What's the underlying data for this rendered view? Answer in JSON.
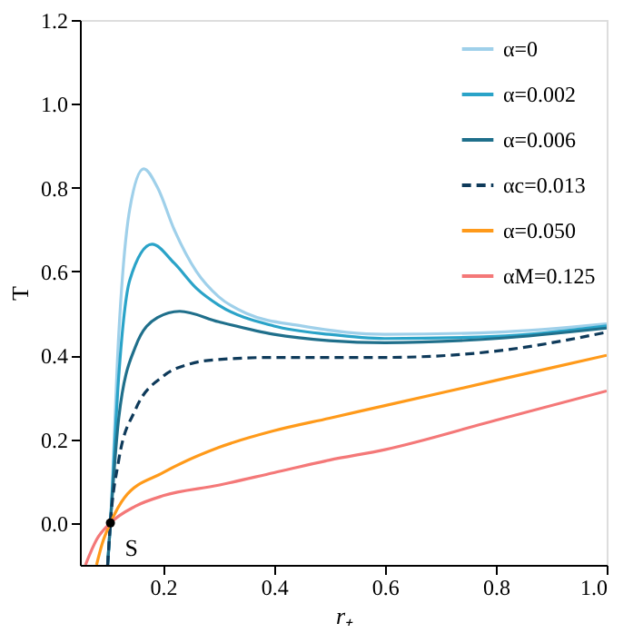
{
  "chart_data": {
    "type": "line",
    "xlabel": "r₊",
    "ylabel": "T",
    "xlim": [
      0.05,
      1.0
    ],
    "ylim": [
      -0.1,
      1.2
    ],
    "xticks": [
      0.2,
      0.4,
      0.6,
      0.8,
      {
        "value": 1.0,
        "label": "1.0"
      }
    ],
    "yticks": [
      {
        "value": 0.0,
        "label": "0.0"
      },
      0.2,
      0.4,
      0.6,
      0.8,
      {
        "value": 1.0,
        "label": "1.0"
      },
      1.2
    ],
    "legend": "top right",
    "grid": false,
    "series": [
      {
        "name": "α=0",
        "color": "#9fd0ea",
        "line_style": "solid",
        "x": [
          0.1,
          0.105,
          0.12,
          0.14,
          0.165,
          0.19,
          0.22,
          0.26,
          0.3,
          0.35,
          0.45,
          0.6,
          0.8,
          1.0
        ],
        "values": [
          -0.1,
          0.0,
          0.45,
          0.75,
          0.845,
          0.8,
          0.7,
          0.6,
          0.54,
          0.5,
          0.47,
          0.45,
          0.455,
          0.475
        ]
      },
      {
        "name": "α=0.002",
        "color": "#2aa3c8",
        "line_style": "solid",
        "x": [
          0.1,
          0.105,
          0.12,
          0.14,
          0.18,
          0.22,
          0.26,
          0.3,
          0.4,
          0.5,
          0.6,
          0.8,
          1.0
        ],
        "values": [
          -0.1,
          0.0,
          0.35,
          0.58,
          0.665,
          0.62,
          0.56,
          0.52,
          0.47,
          0.45,
          0.44,
          0.445,
          0.47
        ]
      },
      {
        "name": "α=0.006",
        "color": "#1f6f8b",
        "line_style": "solid",
        "x": [
          0.1,
          0.105,
          0.12,
          0.15,
          0.19,
          0.23,
          0.3,
          0.4,
          0.5,
          0.6,
          0.8,
          1.0
        ],
        "values": [
          -0.1,
          0.0,
          0.25,
          0.42,
          0.49,
          0.505,
          0.48,
          0.45,
          0.435,
          0.43,
          0.44,
          0.465
        ]
      },
      {
        "name": "αc=0.013",
        "color": "#0e3a5a",
        "line_style": "dashed",
        "x": [
          0.1,
          0.105,
          0.12,
          0.15,
          0.2,
          0.25,
          0.3,
          0.4,
          0.6,
          0.8,
          1.0
        ],
        "values": [
          -0.1,
          0.0,
          0.15,
          0.27,
          0.35,
          0.38,
          0.39,
          0.395,
          0.395,
          0.41,
          0.455
        ]
      },
      {
        "name": "α=0.050",
        "color": "#ff9a1a",
        "line_style": "solid",
        "x": [
          0.08,
          0.09,
          0.105,
          0.13,
          0.2,
          0.3,
          0.4,
          0.5,
          0.6,
          0.8,
          1.0
        ],
        "values": [
          -0.1,
          -0.05,
          0.0,
          0.06,
          0.12,
          0.18,
          0.22,
          0.25,
          0.28,
          0.34,
          0.4
        ]
      },
      {
        "name": "αM=0.125",
        "color": "#f47878",
        "line_style": "solid",
        "x": [
          0.06,
          0.08,
          0.105,
          0.15,
          0.2,
          0.3,
          0.4,
          0.5,
          0.6,
          0.8,
          1.0
        ],
        "values": [
          -0.1,
          -0.04,
          0.0,
          0.04,
          0.065,
          0.09,
          0.12,
          0.15,
          0.175,
          0.245,
          0.315
        ]
      }
    ],
    "annotations": [
      {
        "text": "S",
        "x": 0.105,
        "y": 0.0
      }
    ]
  }
}
